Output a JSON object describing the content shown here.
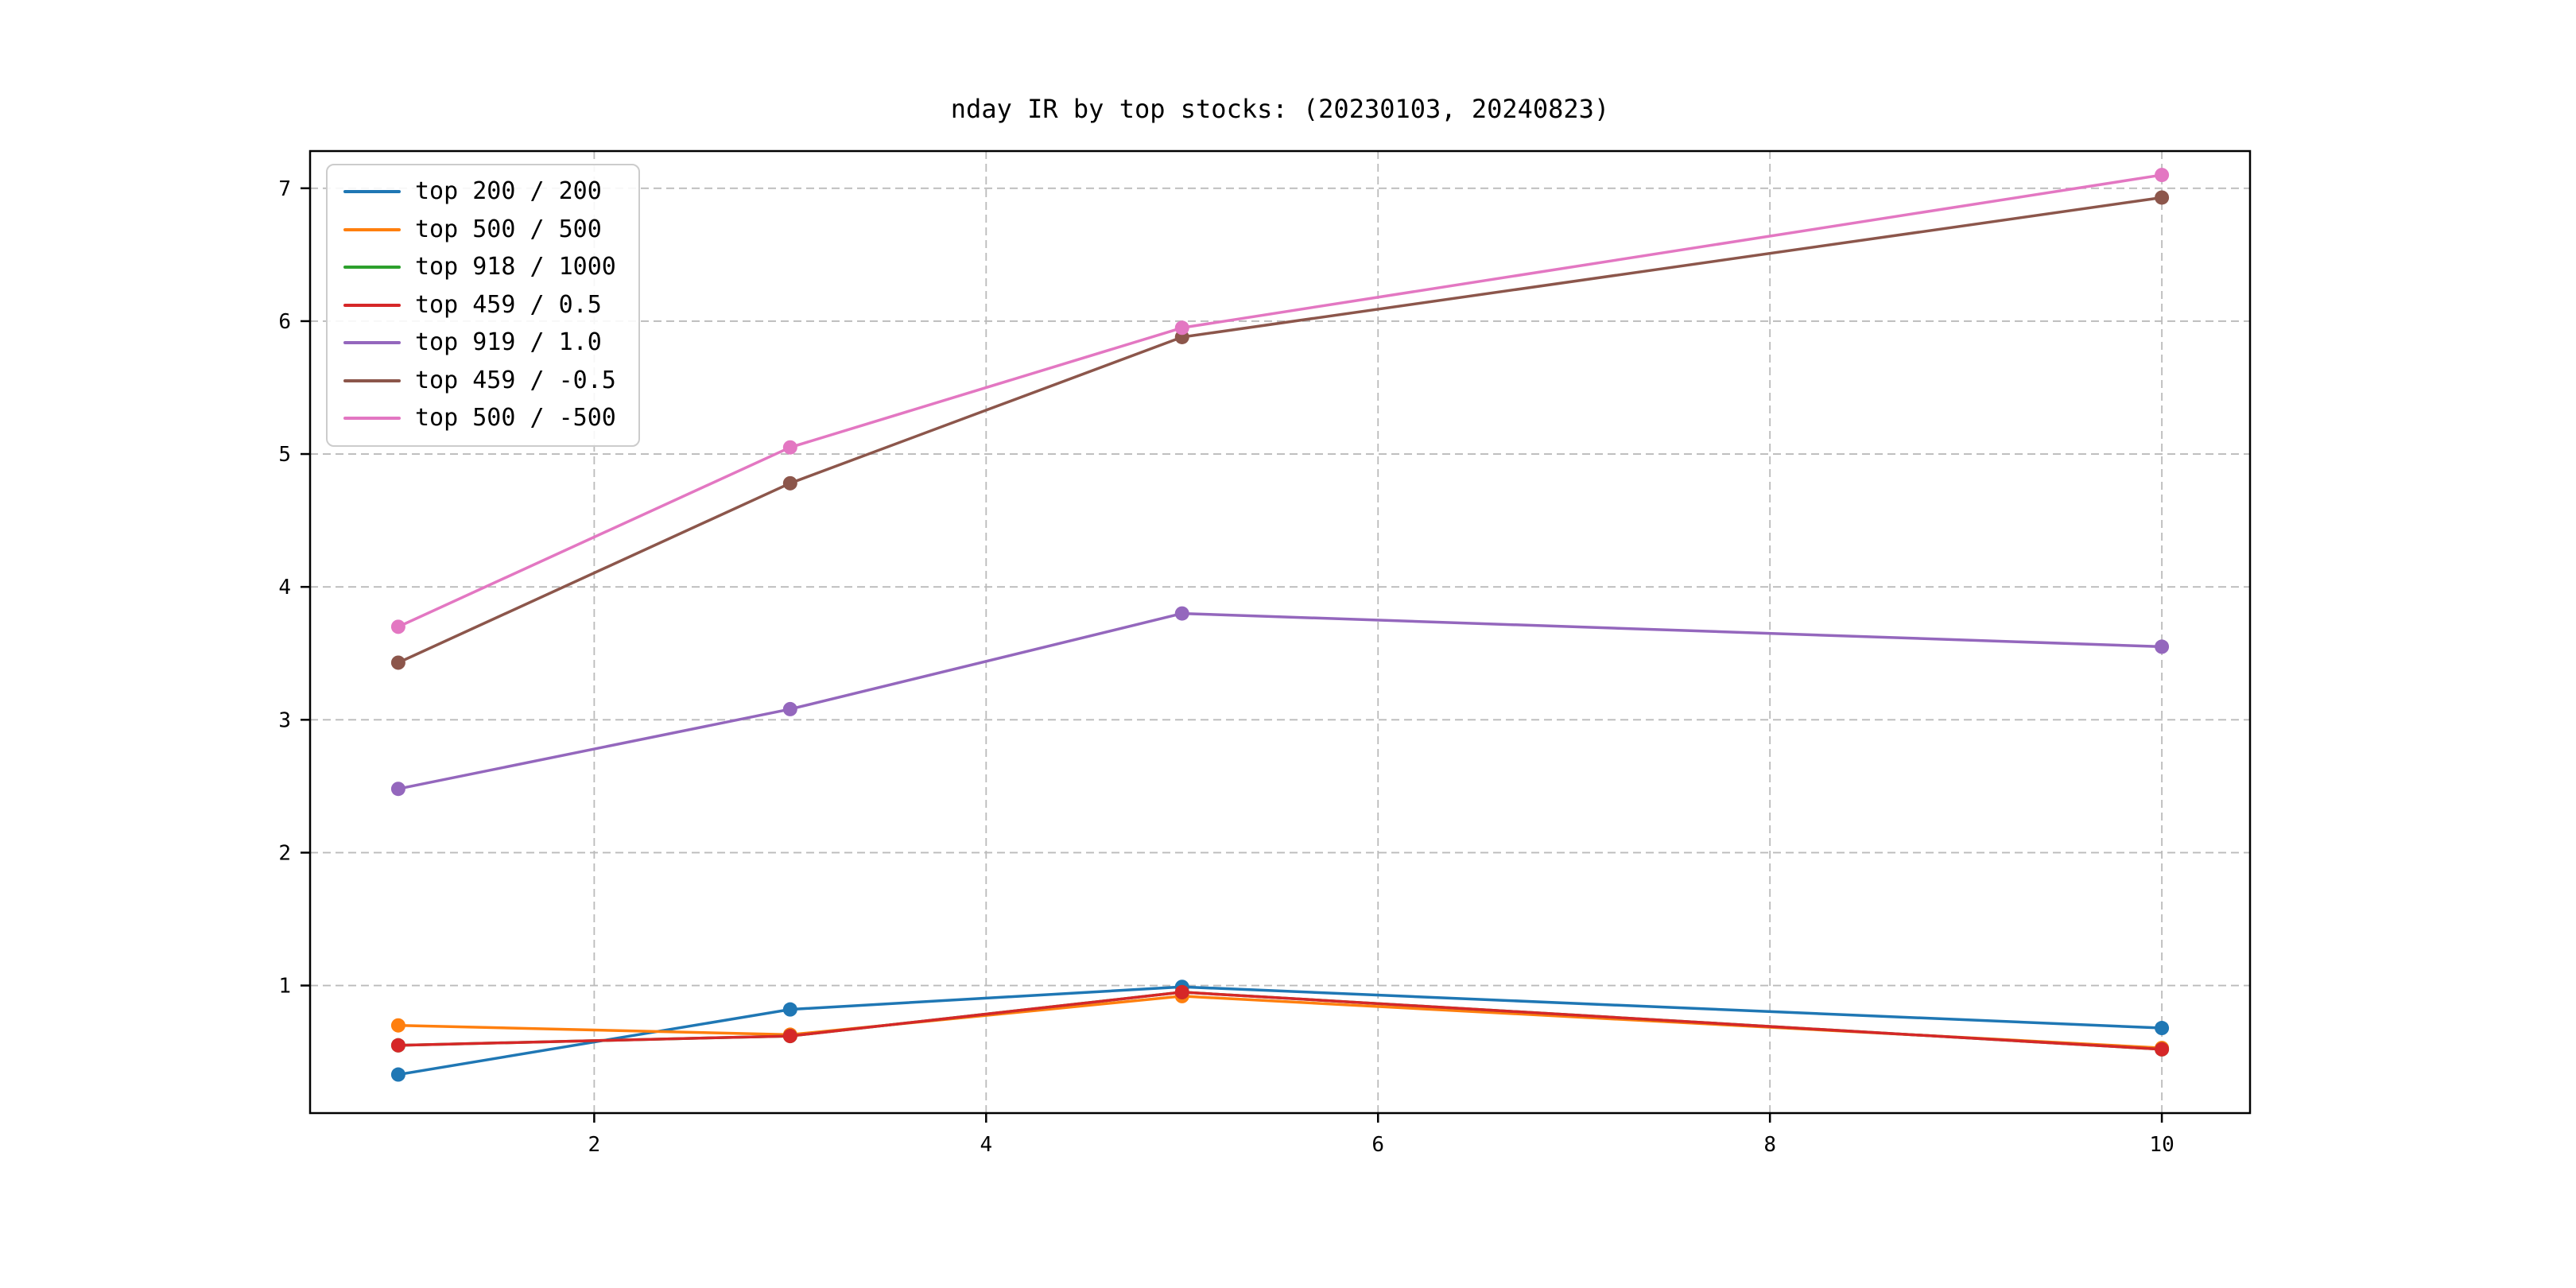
{
  "chart_data": {
    "type": "line",
    "title": "nday IR by top stocks: (20230103, 20240823)",
    "xlabel": "",
    "ylabel": "",
    "x": [
      1,
      3,
      5,
      10
    ],
    "x_ticks": [
      2,
      4,
      6,
      8,
      10
    ],
    "y_ticks": [
      1,
      2,
      3,
      4,
      5,
      6,
      7
    ],
    "xlim": [
      0.55,
      10.45
    ],
    "ylim": [
      0.04,
      7.28
    ],
    "grid": "dashed",
    "grid_color": "#bbbbbb",
    "legend_position": "upper-left",
    "marker": "circle",
    "series": [
      {
        "name": "top 200 / 200",
        "color": "#1f77b4",
        "values": [
          0.33,
          0.82,
          0.99,
          0.68
        ]
      },
      {
        "name": "top 500 / 500",
        "color": "#ff7f0e",
        "values": [
          0.7,
          0.63,
          0.92,
          0.53
        ]
      },
      {
        "name": "top 918 / 1000",
        "color": "#2ca02c",
        "values": [
          0.55,
          0.62,
          0.95,
          0.52
        ]
      },
      {
        "name": "top 459 / 0.5",
        "color": "#d62728",
        "values": [
          0.55,
          0.62,
          0.95,
          0.52
        ]
      },
      {
        "name": "top 919 / 1.0",
        "color": "#9467bd",
        "values": [
          2.48,
          3.08,
          3.8,
          3.55
        ]
      },
      {
        "name": "top 459 / -0.5",
        "color": "#8c564b",
        "values": [
          3.43,
          4.78,
          5.88,
          6.93
        ]
      },
      {
        "name": "top 500 / -500",
        "color": "#e377c2",
        "values": [
          3.7,
          5.05,
          5.95,
          7.1
        ]
      }
    ]
  }
}
